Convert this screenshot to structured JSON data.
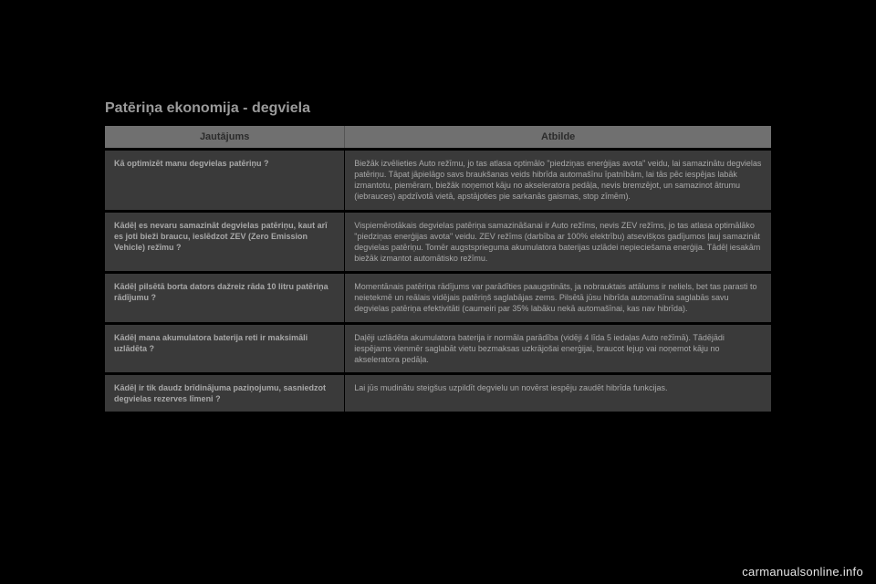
{
  "section_title": "Patēriņa ekonomija - degviela",
  "table": {
    "headers": {
      "question": "Jautājums",
      "answer": "Atbilde"
    },
    "rows": [
      {
        "q": "Kā optimizēt manu degvielas patēriņu ?",
        "a": "Biežāk izvēlieties Auto režīmu, jo tas atlasa optimālo \"piedziņas enerģijas avota\" veidu, lai samazinātu degvielas patēriņu.\nTāpat jāpielāgo savs braukšanas veids hibrīda automašīnu īpatnībām, lai tās pēc iespējas labāk izmantotu, piemēram, biežāk noņemot kāju no akseleratora pedāļa, nevis bremzējot, un samazinot ātrumu (iebrauces) apdzīvotā vietā, apstājoties pie sarkanās gaismas, stop zīmēm)."
      },
      {
        "q": "Kādēļ es nevaru samazināt degvielas patēriņu, kaut arī es joti bieži braucu, ieslēdzot ZEV (Zero Emission Vehicle) režīmu ?",
        "a": "Vispiemērotākais degvielas patēriņa samazināšanai ir Auto režīms, nevis ZEV režīms, jo tas atlasa optimālāko \"piedziņas enerģijas avota\" veidu.\nZEV režīms (darbība ar 100% elektrību) atsevišķos gadījumos ļauj samazināt degvielas patēriņu. Tomēr augstsprieguma akumulatora baterijas uzlādei nepieciešama enerģija.\nTādēļ iesakām biežāk izmantot automātisko režīmu."
      },
      {
        "q": "Kādēļ pilsētā borta dators dažreiz rāda 10 litru patēriņa rādījumu ?",
        "a": "Momentānais patēriņa rādījums var parādīties paaugstināts, ja nobrauktais attālums ir neliels, bet tas parasti to neietekmē un reālais vidējais patēriņš saglabājas zems.\nPilsētā jūsu hibrīda automašīna saglabās savu degvielas patēriņa efektivitāti (caumeiri par 35% labāku nekā automašīnai, kas nav hibrīda)."
      },
      {
        "q": "Kādēļ mana akumulatora baterija reti ir maksimāli uzlādēta ?",
        "a": "Daļēji uzlādēta akumulatora baterija ir normāla parādība (vidēji 4 līda 5 iedaļas Auto režīmā). Tādējādi iespējams vienmēr saglabāt vietu bezmaksas uzkrājošai enerģijai, braucot lejup vai noņemot kāju no akseleratora pedāļa."
      },
      {
        "q": "Kādēļ ir tik daudz brīdinājuma paziņojumu, sasniedzot degvielas rezerves līmeni ?",
        "a": "Lai jūs mudinātu steigšus uzpildīt degvielu un novērst iespēju zaudēt hibrīda funkcijas."
      }
    ]
  },
  "watermark": "carmanualsonline.info"
}
